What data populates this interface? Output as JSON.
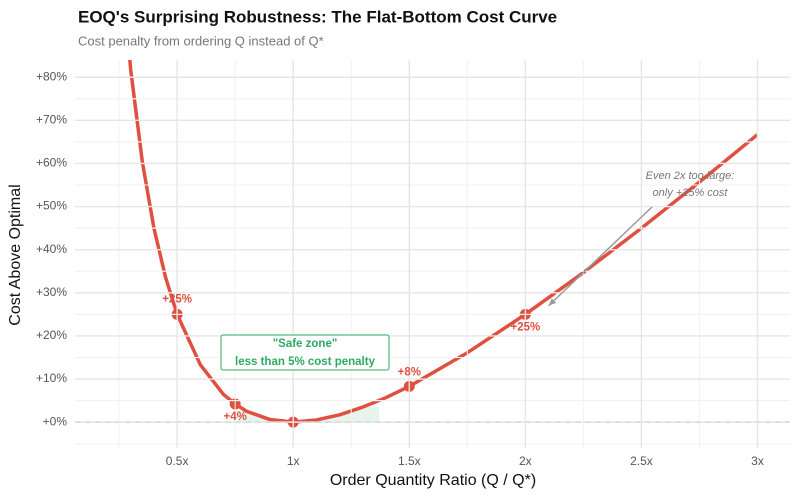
{
  "chart_data": {
    "type": "line",
    "title": "EOQ's Surprising Robustness: The Flat-Bottom Cost Curve",
    "subtitle": "Cost penalty from ordering Q instead of Q*",
    "x_label": "Order Quantity Ratio (Q / Q*)",
    "y_label": "Cost Above Optimal",
    "xlim": [
      0.06,
      3.14
    ],
    "ylim": [
      -6,
      84
    ],
    "xticks": [
      {
        "value": 0.5,
        "label": "0.5x"
      },
      {
        "value": 1,
        "label": "1x"
      },
      {
        "value": 1.5,
        "label": "1.5x"
      },
      {
        "value": 2,
        "label": "2x"
      },
      {
        "value": 2.5,
        "label": "2.5x"
      },
      {
        "value": 3,
        "label": "3x"
      }
    ],
    "yticks": [
      {
        "value": 0,
        "label": "+0%"
      },
      {
        "value": 10,
        "label": "+10%"
      },
      {
        "value": 20,
        "label": "+20%"
      },
      {
        "value": 30,
        "label": "+30%"
      },
      {
        "value": 40,
        "label": "+40%"
      },
      {
        "value": 50,
        "label": "+50%"
      },
      {
        "value": 60,
        "label": "+60%"
      },
      {
        "value": 70,
        "label": "+70%"
      },
      {
        "value": 80,
        "label": "+80%"
      }
    ],
    "grid": true,
    "reference_line": 0,
    "series": [
      {
        "name": "Cost curve",
        "color": "#e05040",
        "x": [
          0.25,
          0.3,
          0.35,
          0.4,
          0.45,
          0.5,
          0.6,
          0.7,
          0.75,
          0.8,
          0.9,
          1,
          1.1,
          1.2,
          1.3,
          1.4,
          1.5,
          1.75,
          2,
          2.25,
          2.5,
          2.75,
          3
        ],
        "values": [
          112.5,
          81.7,
          60.4,
          45,
          33.6,
          25,
          13.3,
          6.4,
          4.2,
          2.5,
          0.6,
          0,
          0.5,
          1.7,
          3.5,
          5.7,
          8.3,
          16.1,
          25,
          34.7,
          45,
          55.7,
          66.7
        ]
      },
      {
        "name": "Highlighted points",
        "color": "#e05040",
        "x": [
          0.5,
          0.75,
          1,
          1.5,
          2
        ],
        "values": [
          25,
          4.2,
          0,
          8.3,
          25
        ],
        "value_labels": [
          "+25%",
          "+4%",
          null,
          "+8%",
          "+25%"
        ]
      }
    ],
    "safe_zone": {
      "x": [
        0.76,
        1.37
      ],
      "color": "#2eaa60",
      "text": [
        "\"Safe zone\"",
        "less than 5% cost penalty"
      ]
    },
    "annotation": {
      "text": [
        "Even 2x too large:",
        "only +25% cost"
      ],
      "x": 2.1,
      "y": 27
    }
  }
}
